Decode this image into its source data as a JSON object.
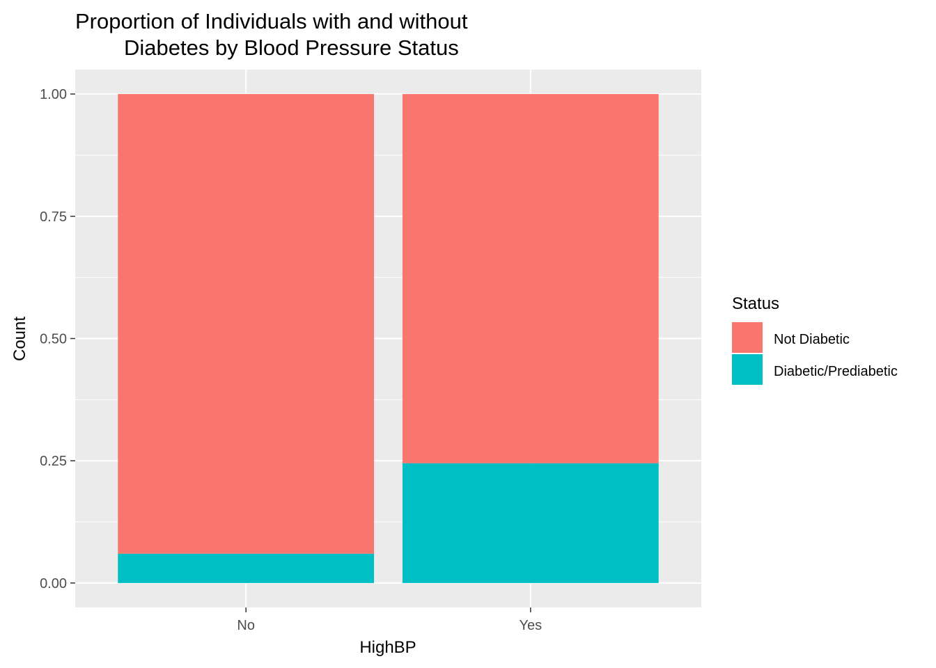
{
  "chart_data": {
    "type": "bar",
    "stacked": true,
    "title_lines": [
      "Proportion of Individuals with and without",
      "Diabetes by Blood Pressure Status"
    ],
    "xlabel": "HighBP",
    "ylabel": "Count",
    "categories": [
      "No",
      "Yes"
    ],
    "series": [
      {
        "name": "Not Diabetic",
        "values": [
          0.94,
          0.755
        ],
        "color": "#F8766D"
      },
      {
        "name": "Diabetic/Prediabetic",
        "values": [
          0.06,
          0.245
        ],
        "color": "#00BFC4"
      }
    ],
    "ylim": [
      -0.05,
      1.05
    ],
    "yticks": [
      0,
      0.25,
      0.5,
      0.75,
      1
    ],
    "ytick_labels": [
      "0.00",
      "0.25",
      "0.50",
      "0.75",
      "1.00"
    ],
    "grid": true,
    "panel_color": "#EBEBEB",
    "legend": {
      "title": "Status",
      "placement": "right",
      "items": [
        "Not Diabetic",
        "Diabetic/Prediabetic"
      ]
    }
  }
}
